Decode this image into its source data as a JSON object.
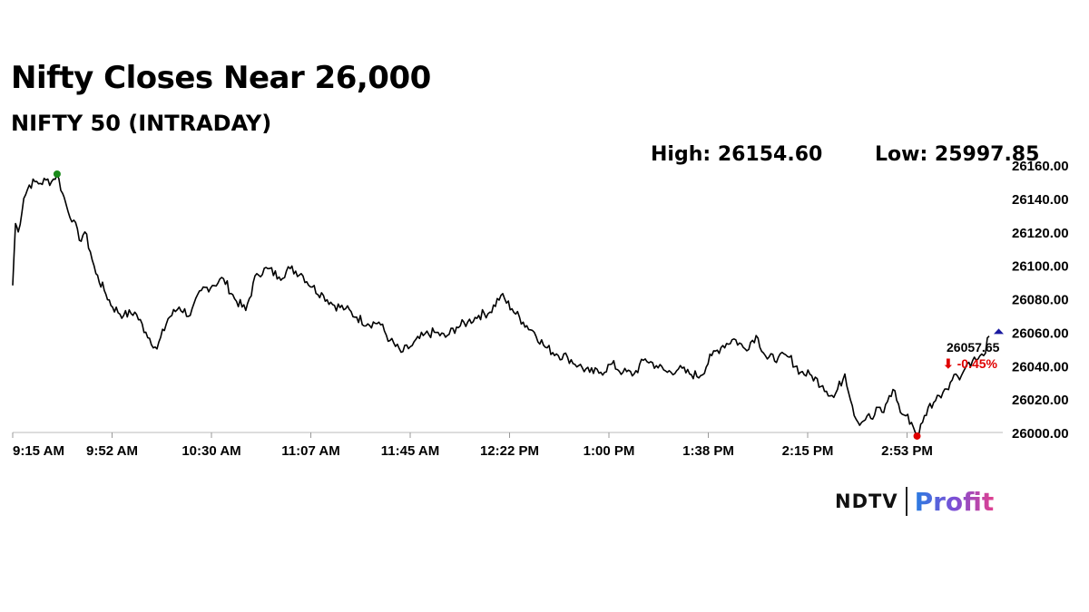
{
  "title": "Nifty Closes Near 26,000",
  "subtitle": "NIFTY 50 (INTRADAY)",
  "high_label": "High: 26154.60",
  "low_label": "Low: 25997.85",
  "logo": {
    "brand": "NDTV",
    "product": "Profit"
  },
  "colors": {
    "line": "#000000",
    "high_marker": "#1a8a1a",
    "low_marker": "#e00000",
    "last_marker": "#1a1aa0",
    "change_negative": "#e00000"
  },
  "chart_data": {
    "type": "line",
    "title": "NIFTY 50 (INTRADAY)",
    "xlabel": "",
    "ylabel": "",
    "x_ticks": [
      "9:15 AM",
      "9:52 AM",
      "10:30 AM",
      "11:07 AM",
      "11:45 AM",
      "12:22 PM",
      "1:00 PM",
      "1:38 PM",
      "2:15 PM",
      "2:53 PM"
    ],
    "y_ticks": [
      "26000.00",
      "26020.00",
      "26040.00",
      "26060.00",
      "26080.00",
      "26100.00",
      "26120.00",
      "26140.00",
      "26160.00"
    ],
    "ylim": [
      26000,
      26160
    ],
    "xlim_minutes_after_open": [
      0,
      352
    ],
    "grid": false,
    "high": 26154.6,
    "low": 25997.85,
    "last_value_label": "26057.65",
    "change_label": "⬇ -0.45%",
    "series": [
      {
        "x_minutes": [
          0,
          1,
          2,
          4,
          6,
          8,
          10,
          12,
          14,
          16,
          18,
          19,
          20,
          22,
          24,
          26,
          28,
          30,
          33,
          36,
          40,
          44,
          48,
          52,
          56,
          60,
          64,
          68,
          72,
          76,
          80,
          84,
          88,
          92,
          96,
          100,
          104,
          108,
          112,
          116,
          120,
          124,
          128,
          132,
          136,
          140,
          144,
          148,
          152,
          156,
          160,
          164,
          168,
          172,
          176,
          180,
          184,
          188,
          192,
          196,
          200,
          204,
          208,
          212,
          216,
          220,
          224,
          228,
          232,
          236,
          240,
          244,
          248,
          252,
          256,
          260,
          264,
          268,
          272,
          276,
          280,
          284,
          288,
          292,
          296,
          300,
          304,
          306,
          308,
          310,
          312,
          314,
          316,
          318,
          320,
          322,
          324,
          326,
          328,
          330,
          332,
          334,
          336,
          338,
          340,
          342,
          344,
          346,
          348,
          350,
          352
        ],
        "values": [
          26088,
          26125,
          26120,
          26140,
          26148,
          26150,
          26149,
          26151,
          26150,
          26154.6,
          26143,
          26138,
          26132,
          26127,
          26115,
          26120,
          26108,
          26095,
          26085,
          26075,
          26070,
          26072,
          26060,
          26050,
          26068,
          26075,
          26070,
          26085,
          26088,
          26092,
          26080,
          26073,
          26095,
          26098,
          26093,
          26098,
          26095,
          26087,
          26082,
          26076,
          26074,
          26069,
          26065,
          26066,
          26055,
          26048,
          26052,
          26058,
          26060,
          26057,
          26063,
          26066,
          26070,
          26072,
          26082,
          26074,
          26066,
          26060,
          26051,
          26047,
          26045,
          26040,
          26036,
          26036,
          26041,
          26036,
          26035,
          26044,
          26040,
          26036,
          26038,
          26035,
          26034,
          26046,
          26052,
          26056,
          26050,
          26058,
          26044,
          26045,
          26045,
          26036,
          26034,
          26028,
          26021,
          26035,
          26008,
          26006,
          26010,
          26008,
          26015,
          26012,
          26022,
          26025,
          26012,
          26010,
          26006,
          25997.85,
          26006,
          26015,
          26018,
          26022,
          26026,
          26030,
          26035,
          26034,
          26041,
          26043,
          26044,
          26046,
          26057.65
        ]
      }
    ]
  }
}
